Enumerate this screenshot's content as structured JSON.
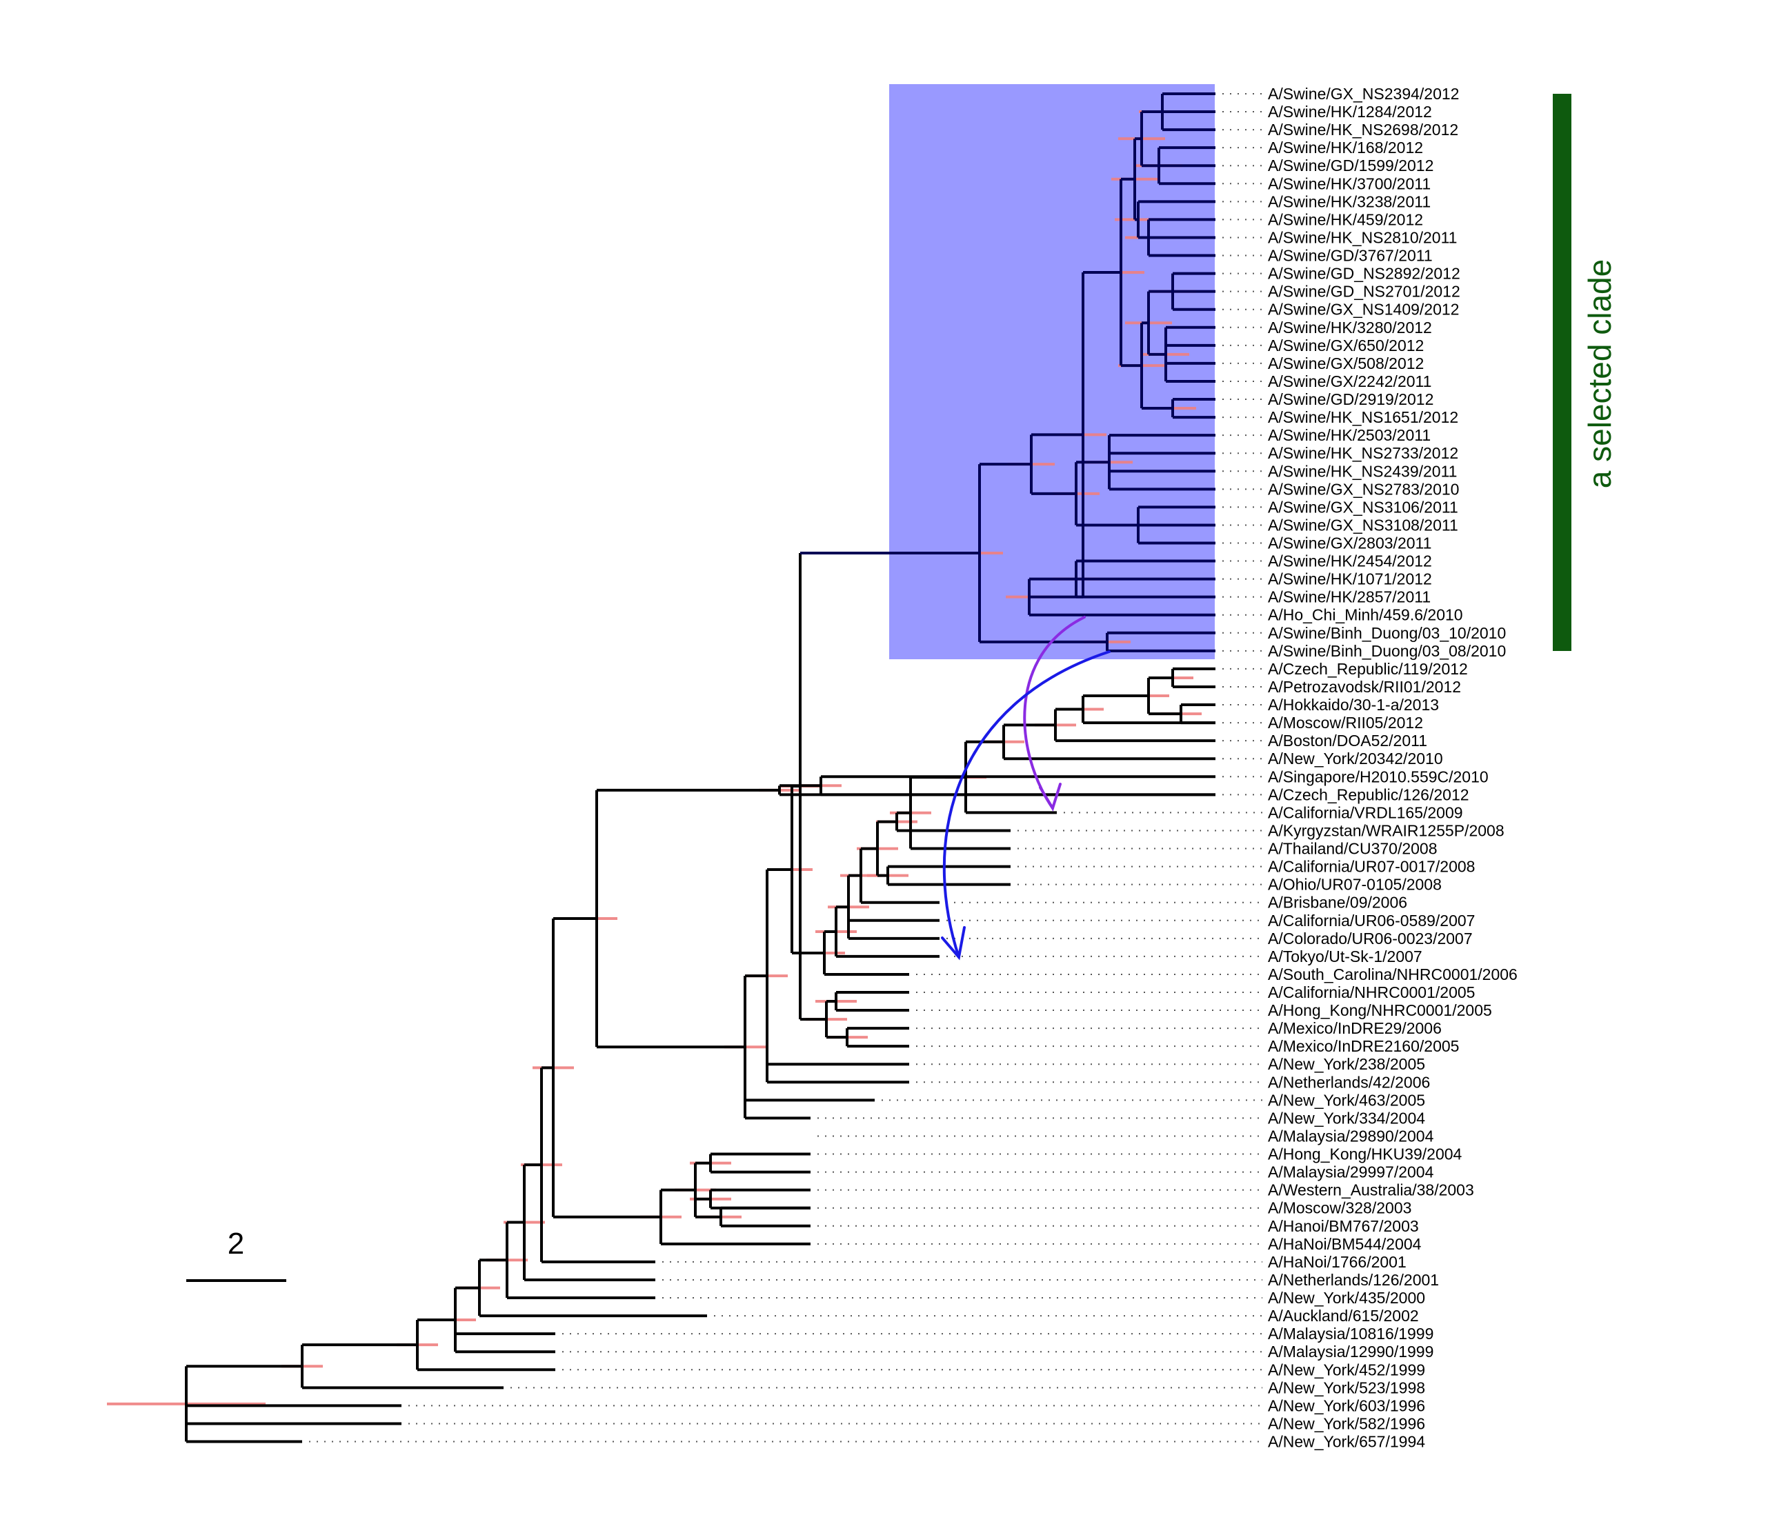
{
  "colors": {
    "branch": "#000000",
    "selected_branch": "#000055",
    "error_bar": "#ef8080",
    "highlight_box": "#9999ff",
    "clade_bar": "#0e5a0e",
    "arrow_purple": "#8a2be2",
    "arrow_blue": "#1a1ae6"
  },
  "scale_bar": {
    "label": "2"
  },
  "clade": {
    "label": "a selected clade"
  },
  "taxa": [
    "A/Swine/GX_NS2394/2012",
    "A/Swine/HK/1284/2012",
    "A/Swine/HK_NS2698/2012",
    "A/Swine/HK/168/2012",
    "A/Swine/GD/1599/2012",
    "A/Swine/HK/3700/2011",
    "A/Swine/HK/3238/2011",
    "A/Swine/HK/459/2012",
    "A/Swine/HK_NS2810/2011",
    "A/Swine/GD/3767/2011",
    "A/Swine/GD_NS2892/2012",
    "A/Swine/GD_NS2701/2012",
    "A/Swine/GX_NS1409/2012",
    "A/Swine/HK/3280/2012",
    "A/Swine/GX/650/2012",
    "A/Swine/GX/508/2012",
    "A/Swine/GX/2242/2011",
    "A/Swine/GD/2919/2012",
    "A/Swine/HK_NS1651/2012",
    "A/Swine/HK/2503/2011",
    "A/Swine/HK_NS2733/2012",
    "A/Swine/HK_NS2439/2011",
    "A/Swine/GX_NS2783/2010",
    "A/Swine/GX_NS3106/2011",
    "A/Swine/GX_NS3108/2011",
    "A/Swine/GX/2803/2011",
    "A/Swine/HK/2454/2012",
    "A/Swine/HK/1071/2012",
    "A/Swine/HK/2857/2011",
    "A/Ho_Chi_Minh/459.6/2010",
    "A/Swine/Binh_Duong/03_10/2010",
    "A/Swine/Binh_Duong/03_08/2010",
    "A/Czech_Republic/119/2012",
    "A/Petrozavodsk/RII01/2012",
    "A/Hokkaido/30-1-a/2013",
    "A/Moscow/RII05/2012",
    "A/Boston/DOA52/2011",
    "A/New_York/20342/2010",
    "A/Singapore/H2010.559C/2010",
    "A/Czech_Republic/126/2012",
    "A/California/VRDL165/2009",
    "A/Kyrgyzstan/WRAIR1255P/2008",
    "A/Thailand/CU370/2008",
    "A/California/UR07-0017/2008",
    "A/Ohio/UR07-0105/2008",
    "A/Brisbane/09/2006",
    "A/California/UR06-0589/2007",
    "A/Colorado/UR06-0023/2007",
    "A/Tokyo/Ut-Sk-1/2007",
    "A/South_Carolina/NHRC0001/2006",
    "A/California/NHRC0001/2005",
    "A/Hong_Kong/NHRC0001/2005",
    "A/Mexico/InDRE29/2006",
    "A/Mexico/InDRE2160/2005",
    "A/New_York/238/2005",
    "A/Netherlands/42/2006",
    "A/New_York/463/2005",
    "A/New_York/334/2004",
    "A/Malaysia/29890/2004",
    "A/Hong_Kong/HKU39/2004",
    "A/Malaysia/29997/2004",
    "A/Western_Australia/38/2003",
    "A/Moscow/328/2003",
    "A/Hanoi/BM767/2003",
    "A/HaNoi/BM544/2004",
    "A/HaNoi/1766/2001",
    "A/Netherlands/126/2001",
    "A/New_York/435/2000",
    "A/Auckland/615/2002",
    "A/Malaysia/10816/1999",
    "A/Malaysia/12990/1999",
    "A/New_York/452/1999",
    "A/New_York/523/1998",
    "A/New_York/603/1996",
    "A/New_York/582/1996",
    "A/New_York/657/1994"
  ]
}
